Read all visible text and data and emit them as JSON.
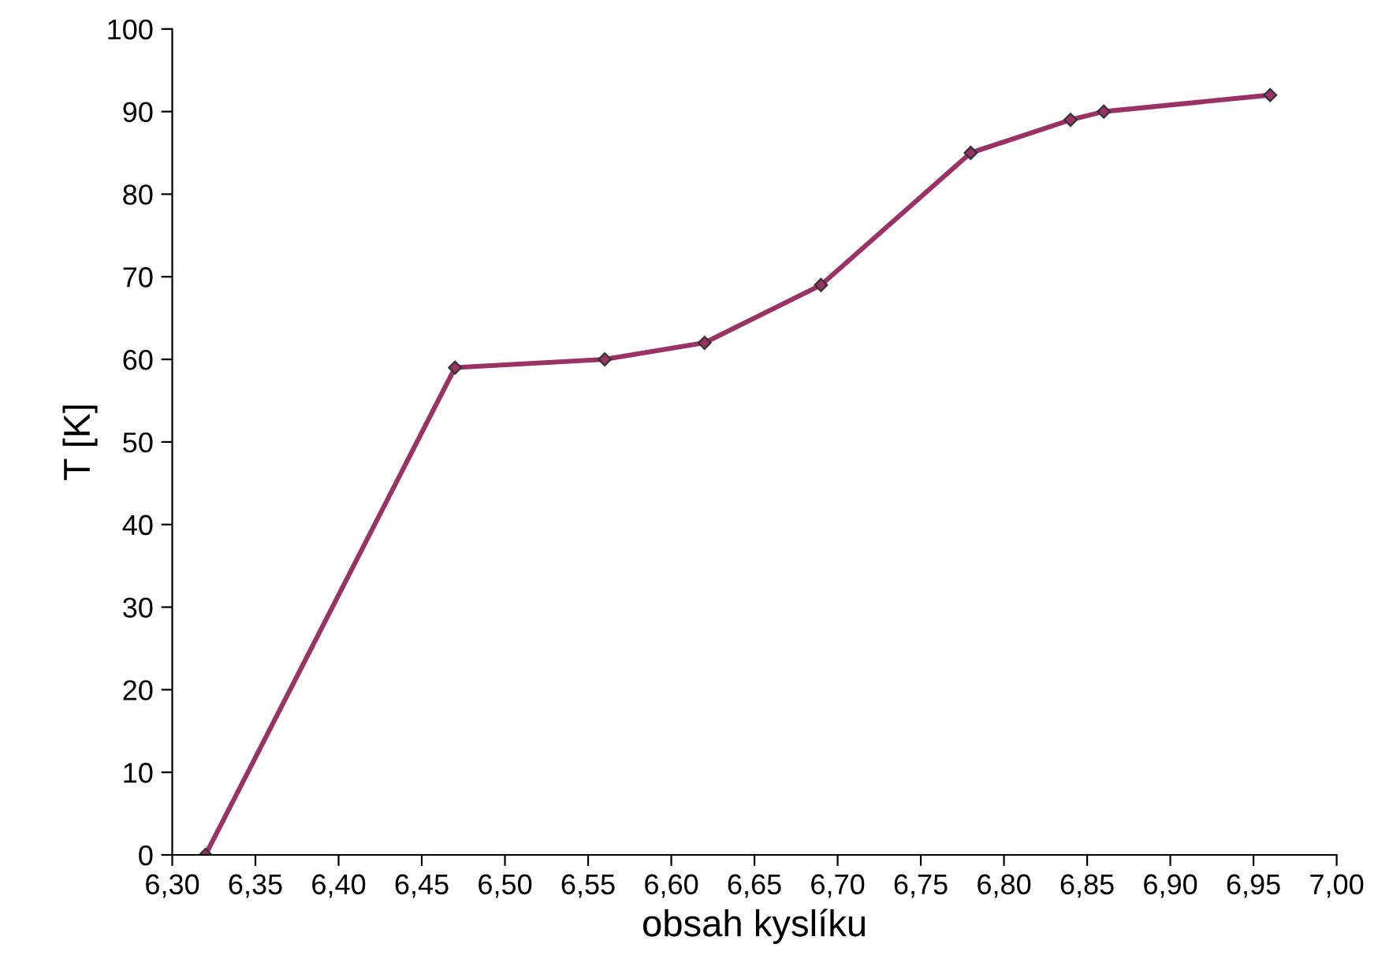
{
  "chart_data": {
    "type": "line",
    "xlabel": "obsah kyslíku",
    "ylabel": "T [K]",
    "series": [
      {
        "color": "#993366",
        "x": [
          6.32,
          6.47,
          6.56,
          6.62,
          6.69,
          6.78,
          6.84,
          6.86,
          6.96
        ],
        "values": [
          0,
          59,
          60,
          62,
          69,
          85,
          89,
          90,
          92
        ]
      }
    ],
    "xlim": [
      6.3,
      7.0
    ],
    "xticks": [
      {
        "value": 6.3,
        "label": "6,30"
      },
      {
        "value": 6.35,
        "label": "6,35"
      },
      {
        "value": 6.4,
        "label": "6,40"
      },
      {
        "value": 6.45,
        "label": "6,45"
      },
      {
        "value": 6.5,
        "label": "6,50"
      },
      {
        "value": 6.55,
        "label": "6,55"
      },
      {
        "value": 6.6,
        "label": "6,60"
      },
      {
        "value": 6.65,
        "label": "6,65"
      },
      {
        "value": 6.7,
        "label": "6,70"
      },
      {
        "value": 6.75,
        "label": "6,75"
      },
      {
        "value": 6.8,
        "label": "6,80"
      },
      {
        "value": 6.85,
        "label": "6,85"
      },
      {
        "value": 6.9,
        "label": "6,90"
      },
      {
        "value": 6.95,
        "label": "6,95"
      },
      {
        "value": 7.0,
        "label": "7,00"
      }
    ],
    "ylim": [
      0,
      100
    ],
    "yticks": [
      0,
      10,
      20,
      30,
      40,
      50,
      60,
      70,
      80,
      90,
      100
    ],
    "marker": "diamond",
    "line_style": "solid",
    "grid": false,
    "legend": false
  }
}
